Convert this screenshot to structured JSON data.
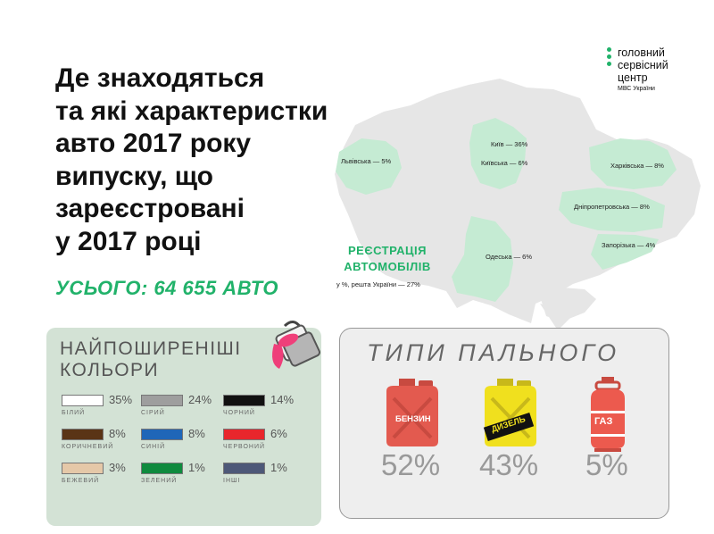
{
  "title": {
    "lines": [
      "Де знаходяться",
      "та які характеристки",
      "авто 2017 року",
      "випуску, що",
      "зареєстровані",
      "у 2017 році"
    ]
  },
  "total": "УСЬОГО: 64 655 АВТО",
  "logo": {
    "lines": [
      "головний",
      "сервісний",
      "центр"
    ],
    "sub": "МВС України"
  },
  "map": {
    "regions": [
      {
        "label": "Львівська — 5%"
      },
      {
        "label": "Київ — 36%"
      },
      {
        "label": "Київська — 6%"
      },
      {
        "label": "Харківська — 8%"
      },
      {
        "label": "Дніпропетровська — 8%"
      },
      {
        "label": "Запорізька — 4%"
      },
      {
        "label": "Одеська — 6%"
      }
    ],
    "registration_title": "РЕЄСТРАЦІЯ АВТОМОБІЛІВ",
    "registration_sub": "у %, решта України — 27%",
    "colors": {
      "map_gray": "#e6e6e6",
      "highlight": "#c5ebd3",
      "accent": "#21b26a"
    }
  },
  "colors_section": {
    "title_line1": "НАЙПОШИРЕНІШІ",
    "title_line2": "КОЛЬОРИ",
    "items": [
      {
        "name": "БІЛИЙ",
        "pct": "35%",
        "color": "#ffffff"
      },
      {
        "name": "СІРИЙ",
        "pct": "24%",
        "color": "#9e9e9e"
      },
      {
        "name": "ЧОРНИЙ",
        "pct": "14%",
        "color": "#111111"
      },
      {
        "name": "КОРИЧНЕВИЙ",
        "pct": "8%",
        "color": "#5a3416"
      },
      {
        "name": "СИНІЙ",
        "pct": "8%",
        "color": "#1f66b8"
      },
      {
        "name": "ЧЕРВОНИЙ",
        "pct": "6%",
        "color": "#e8262c"
      },
      {
        "name": "БЕЖЕВИЙ",
        "pct": "3%",
        "color": "#e5c8a8"
      },
      {
        "name": "ЗЕЛЕНИЙ",
        "pct": "1%",
        "color": "#0f8a3e"
      },
      {
        "name": "ІНШІ",
        "pct": "1%",
        "color": "#4d5878"
      }
    ],
    "icon": "paint-bucket-icon"
  },
  "fuel": {
    "title": "ТИПИ ПАЛЬНОГО",
    "items": [
      {
        "label": "БЕНЗИН",
        "pct": "52%",
        "color": "#e35a4f",
        "icon": "jerrycan-icon"
      },
      {
        "label": "ДИЗЕЛЬ",
        "pct": "43%",
        "color": "#f0e01e",
        "icon": "jerrycan-icon"
      },
      {
        "label": "ГАЗ",
        "pct": "5%",
        "color": "#ec5a4e",
        "icon": "gas-cylinder-icon"
      }
    ]
  }
}
